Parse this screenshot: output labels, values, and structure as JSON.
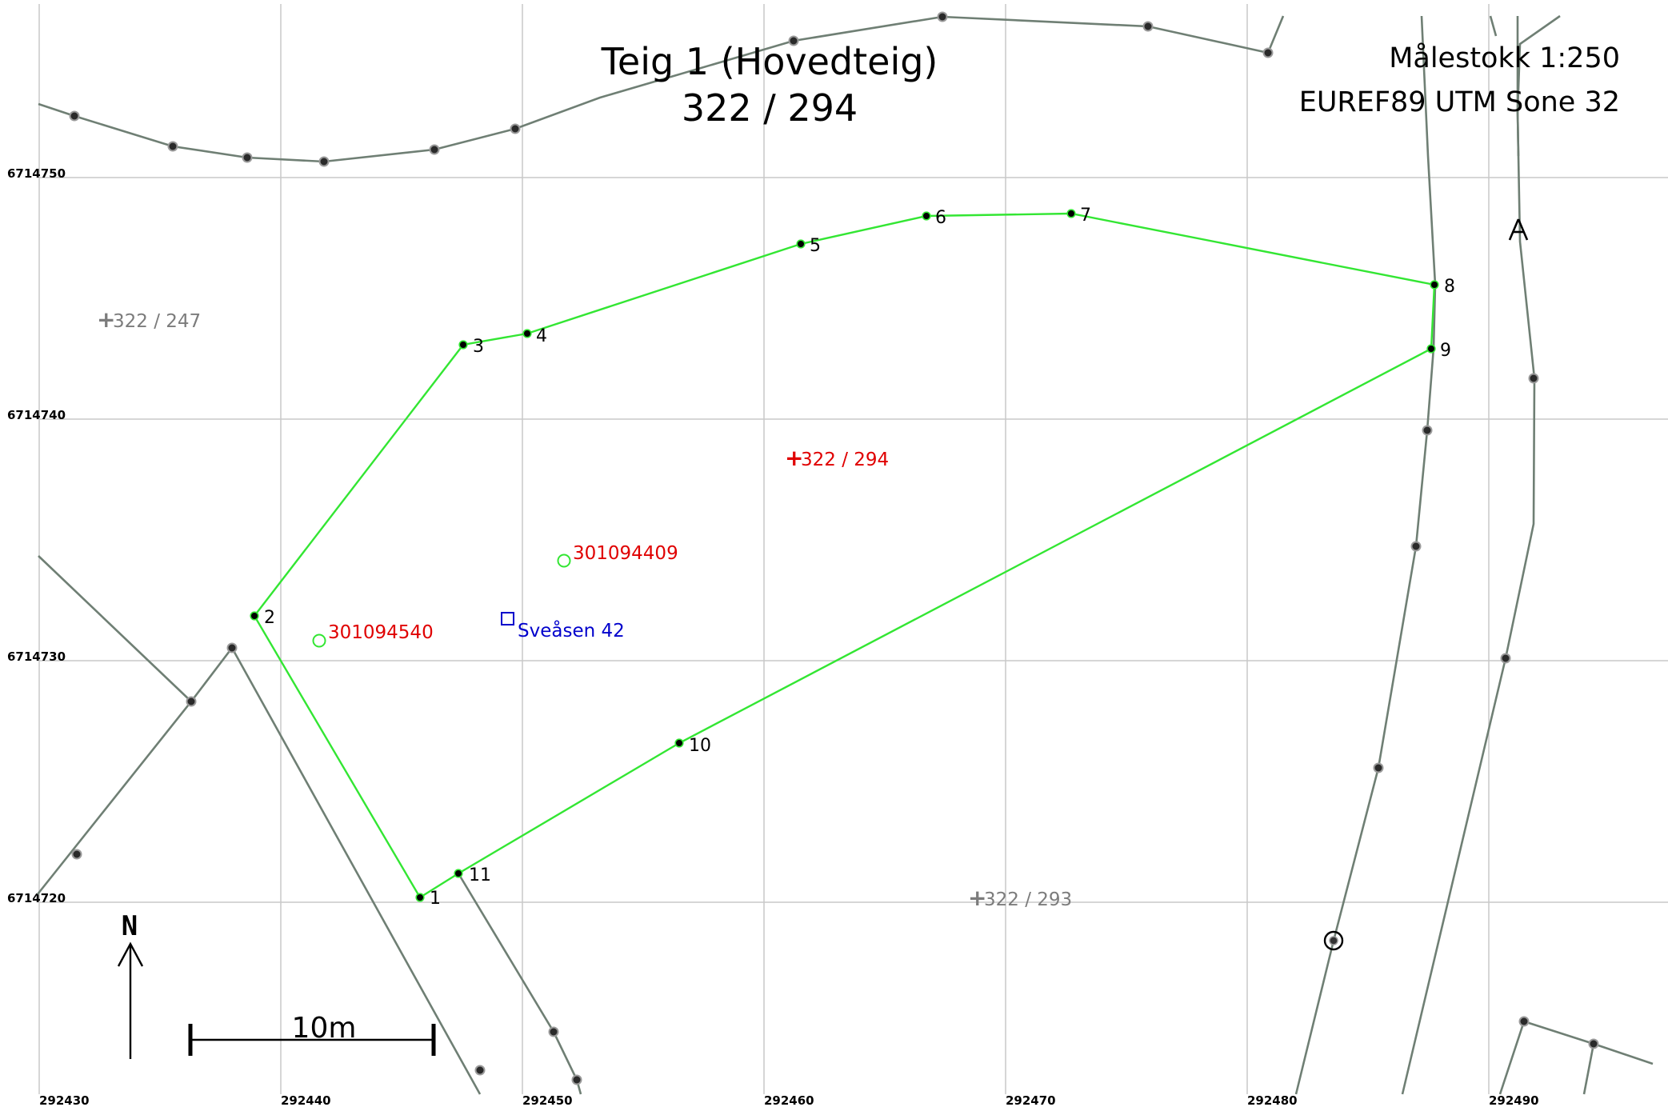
{
  "title": {
    "line1": "Teig 1 (Hovedteig)",
    "line2": "322 / 294"
  },
  "scale_label": "Målestokk 1:250",
  "crs_label": "EUREF89 UTM Sone 32",
  "north_label": "N",
  "scalebar_label": "10m",
  "grid_labels": {
    "northing": [
      "6714750",
      "6714740",
      "6714730",
      "6714720"
    ],
    "easting": [
      "292430",
      "292440",
      "292450",
      "292460",
      "292470",
      "292480",
      "292490"
    ]
  },
  "corner_points": [
    "1",
    "2",
    "3",
    "4",
    "5",
    "6",
    "7",
    "8",
    "9",
    "10",
    "11"
  ],
  "main_parcel": "322 / 294",
  "neighbour_parcels": [
    "322 / 247",
    "322 / 293"
  ],
  "buildings": [
    "301094409",
    "301094540"
  ],
  "address": "Sveåsen 42",
  "colors": {
    "boundary": "#33e633",
    "main_label": "#e00000",
    "neighbour_label": "#7c7c7c",
    "address": "#0000cc",
    "background_lines": "#6f7f74",
    "grid": "#c9c9c9"
  }
}
